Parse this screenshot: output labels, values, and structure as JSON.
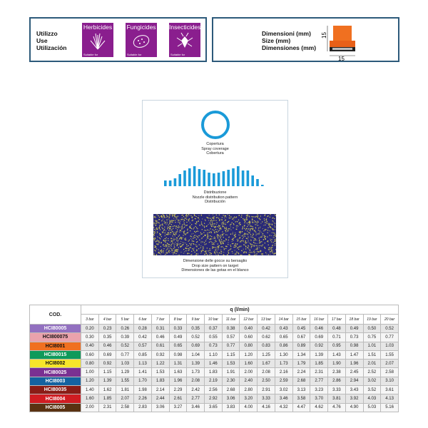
{
  "use": {
    "labels": [
      "Utilizzo",
      "Use",
      "Utilización"
    ],
    "icons": [
      {
        "name": "herbicides-icon",
        "title": "Herbicides",
        "sub": "Suitable for"
      },
      {
        "name": "fungicides-icon",
        "title": "Fungicides",
        "sub": "Suitable for"
      },
      {
        "name": "insecticides-icon",
        "title": "Insecticides",
        "sub": "Suitable for"
      }
    ],
    "icon_color": "#8a1e8e"
  },
  "dimensions": {
    "labels": [
      "Dimensioni (mm)",
      "Size (mm)",
      "Dimensiones (mm)"
    ],
    "height": "15",
    "width": "15",
    "nozzle_color": "#f07020"
  },
  "pattern": {
    "coverage": [
      "Copertura",
      "Spray coverage",
      "Cobertura"
    ],
    "distribution": [
      "Distribuzione",
      "Nozzle distribution pattern",
      "Distribución"
    ],
    "drop": [
      "Dimensione delle gocce su bersaglio",
      "Drop size pattern on target",
      "Dimensiones de las gotas en el blanco"
    ],
    "accent": "#1a9ad8"
  },
  "table": {
    "cod_header": "COD.",
    "q_header": "q (l/min)",
    "pressures": [
      "3 bar",
      "4 bar",
      "5 bar",
      "6 bar",
      "7 bar",
      "8 bar",
      "9 bar",
      "10 bar",
      "11 bar",
      "12 bar",
      "13 bar",
      "14 bar",
      "15 bar",
      "16 bar",
      "17 bar",
      "18 bar",
      "19 bar",
      "20 bar"
    ],
    "rows": [
      {
        "code": "HCI80005",
        "color": "#9270c0",
        "text": "#fff",
        "values": [
          "0.20",
          "0.23",
          "0.26",
          "0.28",
          "0.31",
          "0.33",
          "0.35",
          "0.37",
          "0.38",
          "0.40",
          "0.42",
          "0.43",
          "0.45",
          "0.46",
          "0.48",
          "0.49",
          "0.50",
          "0.52"
        ]
      },
      {
        "code": "HCI800075",
        "color": "#eaa2ac",
        "text": "#111",
        "values": [
          "0.30",
          "0.35",
          "0.39",
          "0.42",
          "0.46",
          "0.49",
          "0.52",
          "0.55",
          "0.57",
          "0.60",
          "0.62",
          "0.65",
          "0.67",
          "0.69",
          "0.71",
          "0.73",
          "0.75",
          "0.77"
        ]
      },
      {
        "code": "HCI8001",
        "color": "#f07020",
        "text": "#111",
        "values": [
          "0.40",
          "0.46",
          "0.52",
          "0.57",
          "0.61",
          "0.65",
          "0.69",
          "0.73",
          "0.77",
          "0.80",
          "0.83",
          "0.86",
          "0.89",
          "0.92",
          "0.95",
          "0.98",
          "1.01",
          "1.03"
        ]
      },
      {
        "code": "HCI80015",
        "color": "#0f9a5a",
        "text": "#fff",
        "values": [
          "0.60",
          "0.69",
          "0.77",
          "0.85",
          "0.92",
          "0.98",
          "1.04",
          "1.10",
          "1.15",
          "1.20",
          "1.25",
          "1.30",
          "1.34",
          "1.39",
          "1.43",
          "1.47",
          "1.51",
          "1.55"
        ]
      },
      {
        "code": "HCI8002",
        "color": "#f6e62a",
        "text": "#111",
        "values": [
          "0.80",
          "0.92",
          "1.03",
          "1.13",
          "1.22",
          "1.31",
          "1.39",
          "1.46",
          "1.53",
          "1.60",
          "1.67",
          "1.73",
          "1.79",
          "1.85",
          "1.90",
          "1.96",
          "2.01",
          "2.07"
        ]
      },
      {
        "code": "HCI80025",
        "color": "#7a3092",
        "text": "#fff",
        "values": [
          "1.00",
          "1.15",
          "1.29",
          "1.41",
          "1.53",
          "1.63",
          "1.73",
          "1.83",
          "1.91",
          "2.00",
          "2.08",
          "2.16",
          "2.24",
          "2.31",
          "2.38",
          "2.45",
          "2.52",
          "2.58"
        ]
      },
      {
        "code": "HCI8003",
        "color": "#1462a0",
        "text": "#fff",
        "values": [
          "1.20",
          "1.39",
          "1.55",
          "1.70",
          "1.83",
          "1.96",
          "2.08",
          "2.19",
          "2.30",
          "2.40",
          "2.50",
          "2.59",
          "2.68",
          "2.77",
          "2.86",
          "2.94",
          "3.02",
          "3.10"
        ]
      },
      {
        "code": "HCI80035",
        "color": "#8a1c16",
        "text": "#fff",
        "values": [
          "1.40",
          "1.62",
          "1.81",
          "1.98",
          "2.14",
          "2.29",
          "2.42",
          "2.56",
          "2.68",
          "2.80",
          "2.91",
          "3.02",
          "3.13",
          "3.23",
          "3.33",
          "3.43",
          "3.52",
          "3.61"
        ]
      },
      {
        "code": "HCI8004",
        "color": "#d01c22",
        "text": "#fff",
        "values": [
          "1.60",
          "1.85",
          "2.07",
          "2.26",
          "2.44",
          "2.61",
          "2.77",
          "2.92",
          "3.06",
          "3.20",
          "3.33",
          "3.46",
          "3.58",
          "3.70",
          "3.81",
          "3.92",
          "4.03",
          "4.13"
        ]
      },
      {
        "code": "HCI8005",
        "color": "#5a3212",
        "text": "#fff",
        "values": [
          "2.00",
          "2.31",
          "2.58",
          "2.83",
          "3.06",
          "3.27",
          "3.46",
          "3.65",
          "3.83",
          "4.00",
          "4.16",
          "4.32",
          "4.47",
          "4.62",
          "4.76",
          "4.90",
          "5.03",
          "5.16"
        ]
      }
    ]
  }
}
